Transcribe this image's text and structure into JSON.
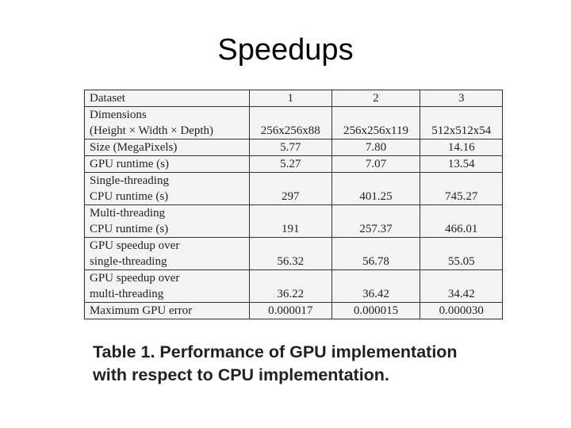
{
  "slide": {
    "title": "Speedups"
  },
  "table": {
    "header": {
      "label": "Dataset",
      "columns": [
        "1",
        "2",
        "3"
      ]
    },
    "rows": [
      {
        "label_lines": [
          "Dimensions",
          "(Height × Width × Depth)"
        ],
        "values": [
          "256x256x88",
          "256x256x119",
          "512x512x54"
        ]
      },
      {
        "label_lines": [
          "Size (MegaPixels)"
        ],
        "values": [
          "5.77",
          "7.80",
          "14.16"
        ]
      },
      {
        "label_lines": [
          "GPU runtime (s)"
        ],
        "values": [
          "5.27",
          "7.07",
          "13.54"
        ]
      },
      {
        "label_lines": [
          "Single-threading",
          "CPU runtime (s)"
        ],
        "values": [
          "297",
          "401.25",
          "745.27"
        ]
      },
      {
        "label_lines": [
          "Multi-threading",
          "CPU runtime (s)"
        ],
        "values": [
          "191",
          "257.37",
          "466.01"
        ]
      },
      {
        "label_lines": [
          "GPU speedup over",
          "single-threading"
        ],
        "values": [
          "56.32",
          "56.78",
          "55.05"
        ]
      },
      {
        "label_lines": [
          "GPU speedup over",
          "multi-threading"
        ],
        "values": [
          "36.22",
          "36.42",
          "34.42"
        ]
      },
      {
        "label_lines": [
          "Maximum GPU error"
        ],
        "values": [
          "0.000017",
          "0.000015",
          "0.000030"
        ]
      }
    ]
  },
  "caption": {
    "line1": "Table 1. Performance of GPU implementation",
    "line2": "with respect to CPU implementation."
  }
}
